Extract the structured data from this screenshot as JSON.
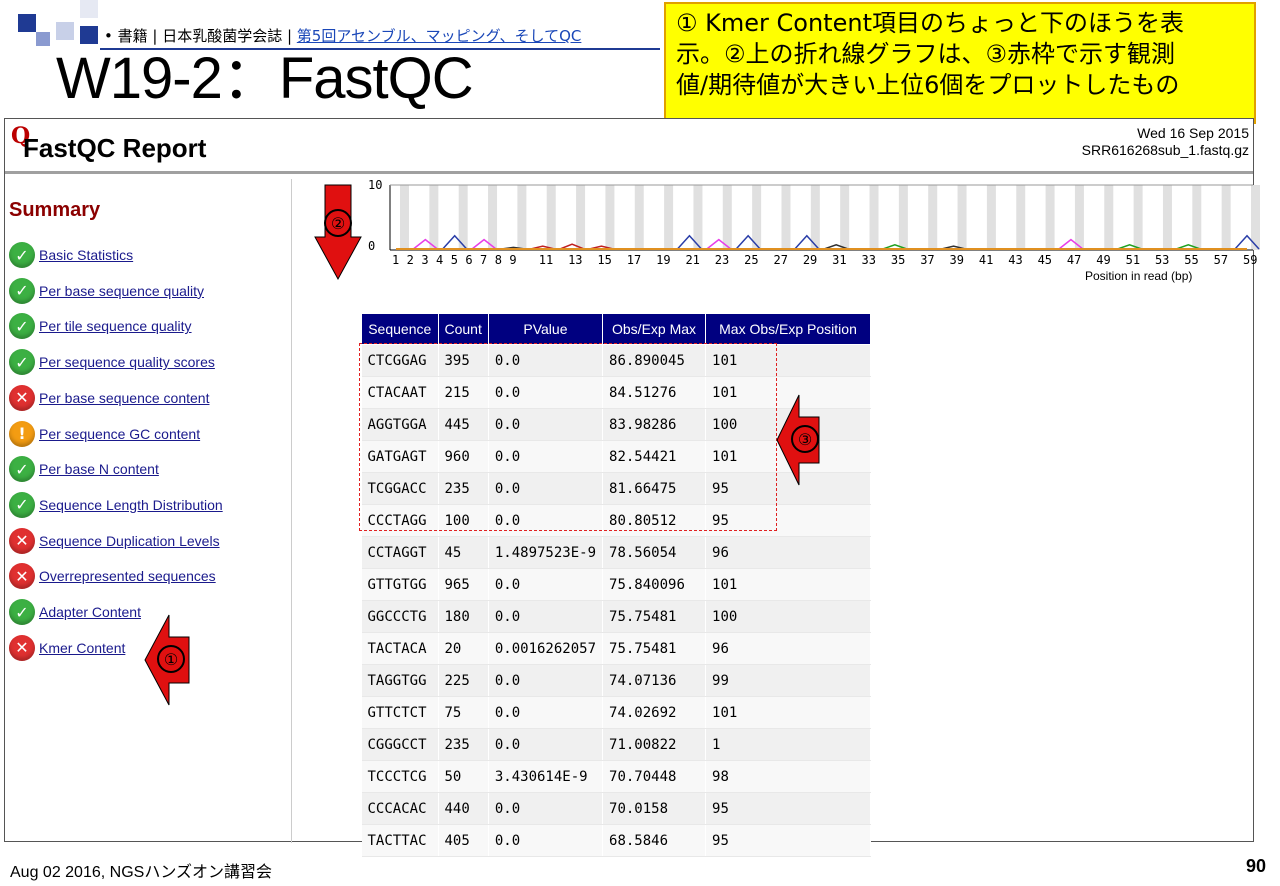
{
  "slide": {
    "breadcrumb_prefix": "• 書籍 | 日本乳酸菌学会誌 | ",
    "breadcrumb_link": "第5回アセンブル、マッピング、そしてQC",
    "title": "W19-2：FastQC",
    "note_lines": [
      "① Kmer Content項目のちょっと下のほうを表",
      "示。②上の折れ線グラフは、③赤枠で示す観測",
      "値/期待値が大きい上位6個をプロットしたもの"
    ],
    "footer_left": "Aug 02 2016, NGSハンズオン講習会",
    "page_number": "90",
    "marker1": "①",
    "marker2": "②",
    "marker3": "③"
  },
  "report": {
    "logo": "Q",
    "title": "FastQC Report",
    "date": "Wed 16 Sep 2015",
    "filename": "SRR616268sub_1.fastq.gz",
    "summary_label": "Summary",
    "modules": [
      {
        "label": "Basic Statistics",
        "status": "pass",
        "icon": "check-icon"
      },
      {
        "label": "Per base sequence quality",
        "status": "pass",
        "icon": "check-icon"
      },
      {
        "label": "Per tile sequence quality",
        "status": "pass",
        "icon": "check-icon"
      },
      {
        "label": "Per sequence quality scores",
        "status": "pass",
        "icon": "check-icon"
      },
      {
        "label": "Per base sequence content",
        "status": "fail",
        "icon": "cross-icon"
      },
      {
        "label": "Per sequence GC content",
        "status": "warn",
        "icon": "exclamation-icon"
      },
      {
        "label": "Per base N content",
        "status": "pass",
        "icon": "check-icon"
      },
      {
        "label": "Sequence Length Distribution",
        "status": "pass",
        "icon": "check-icon"
      },
      {
        "label": "Sequence Duplication Levels",
        "status": "fail",
        "icon": "cross-icon"
      },
      {
        "label": "Overrepresented sequences",
        "status": "fail",
        "icon": "cross-icon"
      },
      {
        "label": "Adapter Content",
        "status": "pass",
        "icon": "check-icon"
      },
      {
        "label": "Kmer Content",
        "status": "fail",
        "icon": "cross-icon"
      }
    ],
    "table": {
      "headers": [
        "Sequence",
        "Count",
        "PValue",
        "Obs/Exp Max",
        "Max Obs/Exp Position"
      ],
      "rows": [
        [
          "CTCGGAG",
          "395",
          "0.0",
          "86.890045",
          "101"
        ],
        [
          "CTACAAT",
          "215",
          "0.0",
          "84.51276",
          "101"
        ],
        [
          "AGGTGGA",
          "445",
          "0.0",
          "83.98286",
          "100"
        ],
        [
          "GATGAGT",
          "960",
          "0.0",
          "82.54421",
          "101"
        ],
        [
          "TCGGACC",
          "235",
          "0.0",
          "81.66475",
          "95"
        ],
        [
          "CCCTAGG",
          "100",
          "0.0",
          "80.80512",
          "95"
        ],
        [
          "CCTAGGT",
          "45",
          "1.4897523E-9",
          "78.56054",
          "96"
        ],
        [
          "GTTGTGG",
          "965",
          "0.0",
          "75.840096",
          "101"
        ],
        [
          "GGCCCTG",
          "180",
          "0.0",
          "75.75481",
          "100"
        ],
        [
          "TACTACA",
          "20",
          "0.0016262057",
          "75.75481",
          "96"
        ],
        [
          "TAGGTGG",
          "225",
          "0.0",
          "74.07136",
          "99"
        ],
        [
          "GTTCTCT",
          "75",
          "0.0",
          "74.02692",
          "101"
        ],
        [
          "CGGGCCT",
          "235",
          "0.0",
          "71.00822",
          "1"
        ],
        [
          "TCCCTCG",
          "50",
          "3.430614E-9",
          "70.70448",
          "98"
        ],
        [
          "CCCACAC",
          "440",
          "0.0",
          "70.0158",
          "95"
        ],
        [
          "TACTTAC",
          "405",
          "0.0",
          "68.5846",
          "95"
        ]
      ]
    }
  },
  "chart_data": {
    "type": "line",
    "xlabel": "Position in read (bp)",
    "ylim": [
      0,
      10
    ],
    "yticks": [
      "10",
      "0"
    ],
    "xticks": [
      "1",
      "2",
      "3",
      "4",
      "5",
      "6",
      "7",
      "8",
      "9",
      "11",
      "13",
      "15",
      "17",
      "19",
      "21",
      "23",
      "25",
      "27",
      "29",
      "31",
      "33",
      "35",
      "37",
      "39",
      "41",
      "43",
      "45",
      "47",
      "49",
      "51",
      "53",
      "55",
      "57",
      "59"
    ],
    "series": [
      {
        "color": "#e83ee8",
        "points": [
          [
            3,
            1.6
          ],
          [
            7,
            1.6
          ],
          [
            23,
            1.6
          ],
          [
            47,
            1.6
          ]
        ]
      },
      {
        "color": "#2a3ea8",
        "points": [
          [
            5,
            2.2
          ],
          [
            21,
            2.2
          ],
          [
            25,
            2.2
          ],
          [
            29,
            2.2
          ],
          [
            59,
            2.2
          ]
        ]
      },
      {
        "color": "#c02020",
        "points": [
          [
            11,
            0.6
          ],
          [
            13,
            0.9
          ],
          [
            15,
            0.6
          ]
        ]
      },
      {
        "color": "#20a020",
        "points": [
          [
            35,
            0.8
          ],
          [
            51,
            0.8
          ],
          [
            55,
            0.8
          ]
        ]
      },
      {
        "color": "#303030",
        "points": [
          [
            9,
            0.4
          ],
          [
            31,
            0.8
          ],
          [
            39,
            0.6
          ]
        ]
      },
      {
        "color": "#e09020",
        "points": [
          [
            1,
            0
          ],
          [
            59,
            0
          ]
        ]
      }
    ]
  },
  "colors": {
    "header_bg": "#000080",
    "note_bg": "#ffff00",
    "pass": "#3cb043",
    "fail": "#e03030",
    "warn": "#f39c12",
    "arrow": "#e01010"
  }
}
